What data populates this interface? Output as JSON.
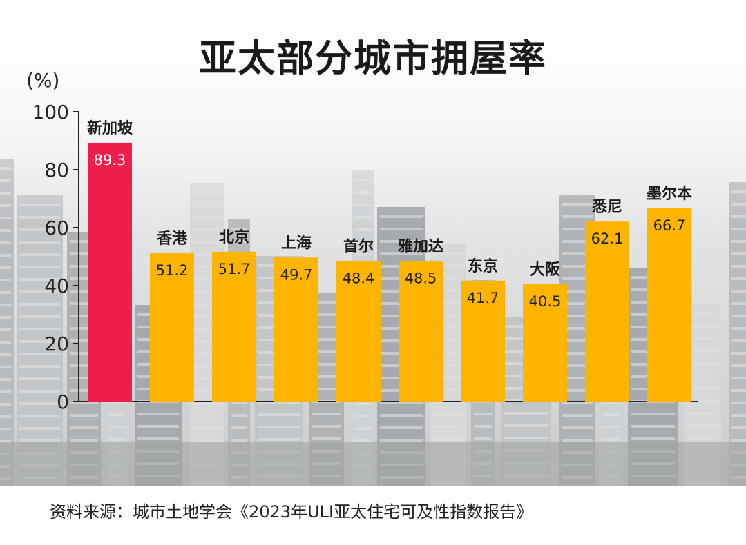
{
  "title": "亚太部分城市拥屋率",
  "unit": "(%)",
  "source": "资料来源：城市土地学会《2023年ULI亚太住宅可及性指数报告》",
  "colors": {
    "highlight": "#ee1f4d",
    "bar": "#ffb400",
    "axis": "#222222",
    "highlight_text": "#ffffff",
    "bar_text": "#222222"
  },
  "chart_data": {
    "type": "bar",
    "title": "亚太部分城市拥屋率",
    "ylabel": "(%)",
    "ylim": [
      0,
      100
    ],
    "yticks": [
      0,
      20,
      40,
      60,
      80,
      100
    ],
    "grid": false,
    "categories": [
      "新加坡",
      "香港",
      "北京",
      "上海",
      "首尔",
      "雅加达",
      "东京",
      "大阪",
      "悉尼",
      "墨尔本"
    ],
    "values": [
      89.3,
      51.2,
      51.7,
      49.7,
      48.4,
      48.5,
      41.7,
      40.5,
      62.1,
      66.7
    ],
    "value_labels": [
      "89.3",
      "51.2",
      "51.7",
      "49.7",
      "48.4",
      "48.5",
      "41.7",
      "40.5",
      "62.1",
      "66.7"
    ],
    "highlight_index": 0
  }
}
